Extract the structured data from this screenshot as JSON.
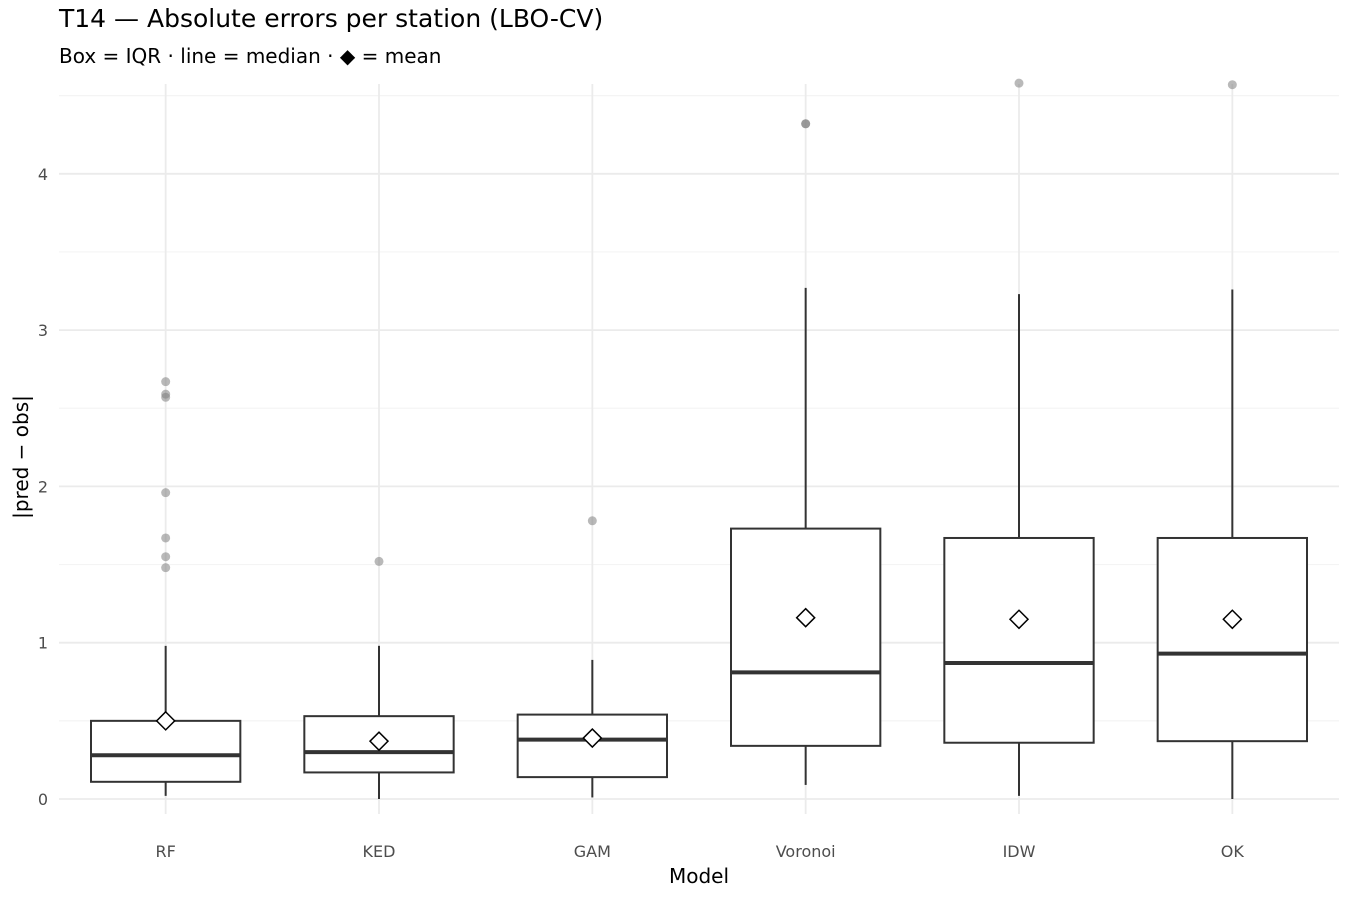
{
  "chart_data": {
    "type": "box",
    "title": "T14 — Absolute errors per station (LBO-CV)",
    "subtitle": "Box = IQR · line = median · ◆ = mean",
    "xlabel": "Model",
    "ylabel": "|pred − obs|",
    "ylim": [
      -0.15,
      4.6
    ],
    "yticks": [
      0,
      1,
      2,
      3,
      4
    ],
    "grid": true,
    "categories": [
      "RF",
      "KED",
      "GAM",
      "Voronoi",
      "IDW",
      "OK"
    ],
    "boxes": [
      {
        "name": "RF",
        "whisker_low": 0.02,
        "q1": 0.11,
        "median": 0.28,
        "q3": 0.5,
        "whisker_high": 0.98,
        "mean": 0.5,
        "outliers": [
          1.48,
          1.55,
          1.67,
          1.96,
          2.57,
          2.59,
          2.67
        ]
      },
      {
        "name": "KED",
        "whisker_low": 0.0,
        "q1": 0.17,
        "median": 0.3,
        "q3": 0.53,
        "whisker_high": 0.98,
        "mean": 0.37,
        "outliers": [
          1.52
        ]
      },
      {
        "name": "GAM",
        "whisker_low": 0.01,
        "q1": 0.14,
        "median": 0.38,
        "q3": 0.54,
        "whisker_high": 0.89,
        "mean": 0.39,
        "outliers": [
          1.78
        ]
      },
      {
        "name": "Voronoi",
        "whisker_low": 0.09,
        "q1": 0.34,
        "median": 0.81,
        "q3": 1.73,
        "whisker_high": 3.27,
        "mean": 1.16,
        "outliers": [
          4.32,
          4.32
        ]
      },
      {
        "name": "IDW",
        "whisker_low": 0.02,
        "q1": 0.36,
        "median": 0.87,
        "q3": 1.67,
        "whisker_high": 3.23,
        "mean": 1.15,
        "outliers": [
          4.58
        ]
      },
      {
        "name": "OK",
        "whisker_low": 0.0,
        "q1": 0.37,
        "median": 0.93,
        "q3": 1.67,
        "whisker_high": 3.26,
        "mean": 1.15,
        "outliers": [
          4.57
        ]
      }
    ],
    "colors": {
      "box_stroke": "#333333",
      "box_fill": "#ffffff",
      "outlier": "#808080",
      "grid_major": "#ebebeb",
      "grid_minor": "#f4f4f4",
      "mean_marker": "#000000"
    }
  }
}
